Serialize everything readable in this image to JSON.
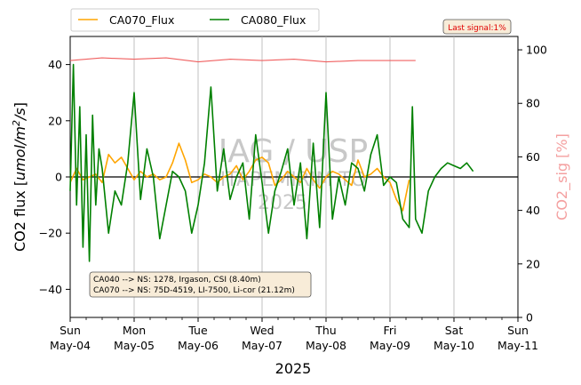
{
  "chart_data": {
    "type": "line",
    "xlabel": "2025",
    "ylabel": "CO2 flux [umol/m^2/s]",
    "ylabel_right": "CO2_sig [%]",
    "ylim": [
      -50,
      50
    ],
    "ylim_right": [
      0,
      105
    ],
    "yticks": [
      -40,
      -20,
      0,
      20,
      40
    ],
    "yticks_right": [
      0,
      20,
      40,
      60,
      80,
      100
    ],
    "x_range_days": [
      0,
      7
    ],
    "xticks": [
      {
        "day": 0,
        "weekday": "Sun",
        "date": "May-04"
      },
      {
        "day": 1,
        "weekday": "Mon",
        "date": "May-05"
      },
      {
        "day": 2,
        "weekday": "Tue",
        "date": "May-06"
      },
      {
        "day": 3,
        "weekday": "Wed",
        "date": "May-07"
      },
      {
        "day": 4,
        "weekday": "Thu",
        "date": "May-08"
      },
      {
        "day": 5,
        "weekday": "Fri",
        "date": "May-09"
      },
      {
        "day": 6,
        "weekday": "Sat",
        "date": "May-10"
      },
      {
        "day": 7,
        "weekday": "Sun",
        "date": "May-11"
      }
    ],
    "grid": "vertical",
    "legend_position": "top-left",
    "series": [
      {
        "name": "CA070_Flux",
        "color": "#ffa500",
        "axis": "left",
        "x": [
          0,
          0.1,
          0.2,
          0.3,
          0.4,
          0.5,
          0.6,
          0.7,
          0.8,
          0.9,
          1.0,
          1.1,
          1.2,
          1.3,
          1.4,
          1.5,
          1.6,
          1.7,
          1.8,
          1.9,
          2.0,
          2.1,
          2.2,
          2.3,
          2.4,
          2.5,
          2.6,
          2.7,
          2.8,
          2.9,
          3.0,
          3.1,
          3.2,
          3.3,
          3.4,
          3.5,
          3.6,
          3.7,
          3.8,
          3.9,
          4.0,
          4.1,
          4.2,
          4.3,
          4.4,
          4.5,
          4.6,
          4.7,
          4.8,
          4.9,
          5.0,
          5.1,
          5.2,
          5.3
        ],
        "values": [
          -2,
          3,
          -1,
          0,
          1,
          -2,
          8,
          5,
          7,
          3,
          -1,
          2,
          0,
          1,
          -1,
          0,
          5,
          12,
          6,
          -2,
          -1,
          1,
          0,
          -2,
          0,
          1,
          4,
          -1,
          2,
          6,
          7,
          5,
          -3,
          -1,
          2,
          0,
          -2,
          3,
          -1,
          -4,
          0,
          2,
          1,
          -1,
          -3,
          6,
          0,
          1,
          3,
          0,
          -2,
          -8,
          -12,
          -1
        ]
      },
      {
        "name": "CA080_Flux",
        "color": "#008000",
        "axis": "left",
        "x": [
          0,
          0.05,
          0.1,
          0.15,
          0.2,
          0.25,
          0.3,
          0.35,
          0.4,
          0.45,
          0.5,
          0.6,
          0.7,
          0.8,
          0.9,
          1.0,
          1.1,
          1.2,
          1.3,
          1.4,
          1.5,
          1.6,
          1.7,
          1.8,
          1.9,
          2.0,
          2.1,
          2.2,
          2.3,
          2.4,
          2.5,
          2.6,
          2.7,
          2.8,
          2.9,
          3.0,
          3.1,
          3.2,
          3.3,
          3.4,
          3.5,
          3.6,
          3.7,
          3.8,
          3.9,
          4.0,
          4.1,
          4.2,
          4.3,
          4.4,
          4.5,
          4.6,
          4.7,
          4.8,
          4.9,
          5.0,
          5.1,
          5.2,
          5.3,
          5.35,
          5.4,
          5.5,
          5.6,
          5.7,
          5.8,
          5.9,
          6.0,
          6.1,
          6.2,
          6.3
        ],
        "values": [
          -5,
          40,
          -10,
          25,
          -25,
          15,
          -30,
          22,
          -10,
          10,
          3,
          -20,
          -5,
          -10,
          5,
          30,
          -8,
          10,
          0,
          -22,
          -10,
          2,
          0,
          -5,
          -20,
          -10,
          5,
          32,
          -5,
          10,
          -8,
          0,
          5,
          -15,
          15,
          -2,
          -20,
          -5,
          2,
          10,
          -10,
          5,
          -22,
          12,
          -18,
          30,
          -15,
          0,
          -10,
          5,
          3,
          -5,
          8,
          15,
          -3,
          0,
          -2,
          -15,
          -18,
          25,
          -15,
          -20,
          -5,
          0,
          3,
          5,
          4,
          3,
          5,
          2
        ]
      },
      {
        "name": "CO2_sig",
        "color": "#f06060",
        "axis": "right",
        "x": [
          0,
          0.5,
          1.0,
          1.5,
          2.0,
          2.5,
          3.0,
          3.5,
          4.0,
          4.5,
          5.0,
          5.4
        ],
        "values": [
          96,
          97,
          96.5,
          97,
          95.5,
          96.5,
          96,
          96.5,
          95.5,
          96,
          96,
          96
        ]
      }
    ],
    "annotations": {
      "watermark_line1": "IAG / USP",
      "watermark_line2": "ITAPEMIRIM TO",
      "watermark_line3": "2025",
      "last_signal": "Last signal:1%",
      "sensor_info": [
        "CA040 --> NS: 1278, Irgason, CSI (8.40m)",
        "CA070 --> NS: 75D-4519, LI-7500, Li-cor (21.12m)"
      ]
    }
  }
}
